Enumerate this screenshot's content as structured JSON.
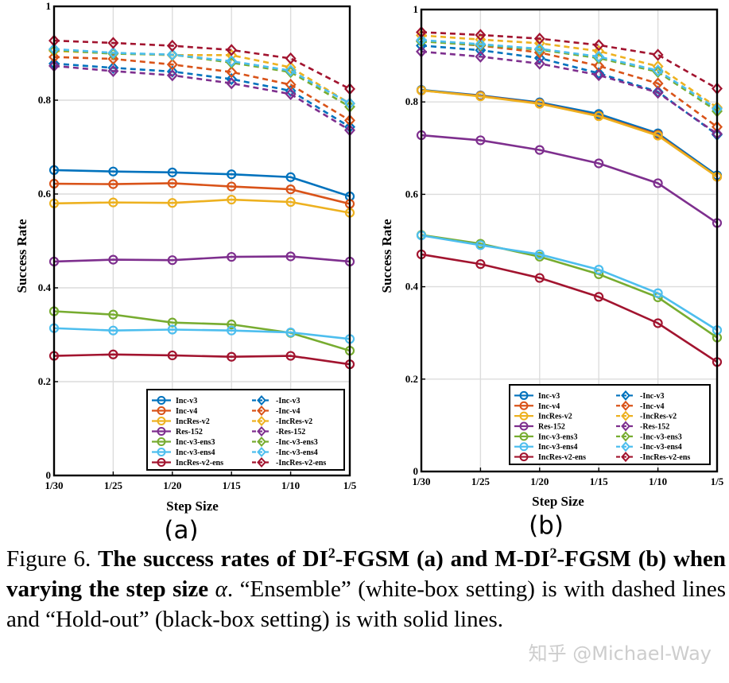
{
  "chart_data": [
    {
      "type": "line",
      "panel_label": "(a)",
      "xlabel": "Step Size",
      "ylabel": "Success Rate",
      "categories": [
        "1/30",
        "1/25",
        "1/20",
        "1/15",
        "1/10",
        "1/5"
      ],
      "yticks": [
        "0",
        "0.2",
        "0.4",
        "0.6",
        "0.8",
        "1"
      ],
      "ylim": [
        0,
        1
      ],
      "grid": true,
      "legend_position": "bottom-right",
      "series": [
        {
          "name": "Inc-v3",
          "style": "solid",
          "marker": "circle",
          "color": "#0072BD",
          "values": [
            0.651,
            0.648,
            0.646,
            0.642,
            0.636,
            0.595
          ]
        },
        {
          "name": "Inc-v4",
          "style": "solid",
          "marker": "circle",
          "color": "#D95319",
          "values": [
            0.622,
            0.621,
            0.623,
            0.616,
            0.61,
            0.579
          ]
        },
        {
          "name": "IncRes-v2",
          "style": "solid",
          "marker": "circle",
          "color": "#EDB120",
          "values": [
            0.58,
            0.582,
            0.581,
            0.588,
            0.583,
            0.56
          ]
        },
        {
          "name": "Res-152",
          "style": "solid",
          "marker": "circle",
          "color": "#7E2F8E",
          "values": [
            0.456,
            0.46,
            0.459,
            0.466,
            0.467,
            0.456
          ]
        },
        {
          "name": "Inc-v3-ens3",
          "style": "solid",
          "marker": "circle",
          "color": "#77AC30",
          "values": [
            0.35,
            0.343,
            0.326,
            0.322,
            0.304,
            0.266
          ]
        },
        {
          "name": "Inc-v3-ens4",
          "style": "solid",
          "marker": "circle",
          "color": "#4DBEEE",
          "values": [
            0.314,
            0.309,
            0.311,
            0.309,
            0.305,
            0.291
          ]
        },
        {
          "name": "IncRes-v2-ens",
          "style": "solid",
          "marker": "circle",
          "color": "#A2142F",
          "values": [
            0.255,
            0.258,
            0.256,
            0.253,
            0.255,
            0.237
          ]
        },
        {
          "name": "-Inc-v3",
          "style": "dashed",
          "marker": "diamond",
          "color": "#0072BD",
          "values": [
            0.878,
            0.869,
            0.861,
            0.845,
            0.82,
            0.743
          ]
        },
        {
          "name": "-Inc-v4",
          "style": "dashed",
          "marker": "diamond",
          "color": "#D95319",
          "values": [
            0.892,
            0.888,
            0.876,
            0.86,
            0.833,
            0.757
          ]
        },
        {
          "name": "-IncRes-v2",
          "style": "dashed",
          "marker": "diamond",
          "color": "#EDB120",
          "values": [
            0.905,
            0.9,
            0.896,
            0.896,
            0.87,
            0.793
          ]
        },
        {
          "name": "-Res-152",
          "style": "dashed",
          "marker": "diamond",
          "color": "#7E2F8E",
          "values": [
            0.873,
            0.862,
            0.853,
            0.836,
            0.813,
            0.736
          ]
        },
        {
          "name": "-Inc-v3-ens3",
          "style": "dashed",
          "marker": "diamond",
          "color": "#77AC30",
          "values": [
            0.907,
            0.899,
            0.897,
            0.88,
            0.86,
            0.786
          ]
        },
        {
          "name": "-Inc-v3-ens4",
          "style": "dashed",
          "marker": "diamond",
          "color": "#4DBEEE",
          "values": [
            0.909,
            0.901,
            0.897,
            0.883,
            0.863,
            0.793
          ]
        },
        {
          "name": "-IncRes-v2-ens",
          "style": "dashed",
          "marker": "diamond",
          "color": "#A2142F",
          "values": [
            0.927,
            0.922,
            0.916,
            0.907,
            0.889,
            0.824
          ]
        }
      ]
    },
    {
      "type": "line",
      "panel_label": "(b)",
      "xlabel": "Step Size",
      "ylabel": "Success Rate",
      "categories": [
        "1/30",
        "1/25",
        "1/20",
        "1/15",
        "1/10",
        "1/5"
      ],
      "yticks": [
        "0",
        "0.2",
        "0.4",
        "0.6",
        "0.8",
        "1"
      ],
      "ylim": [
        0,
        1
      ],
      "grid": true,
      "legend_position": "bottom-right",
      "series": [
        {
          "name": "Inc-v3",
          "style": "solid",
          "marker": "circle",
          "color": "#0072BD",
          "values": [
            0.826,
            0.814,
            0.799,
            0.774,
            0.732,
            0.641
          ]
        },
        {
          "name": "Inc-v4",
          "style": "solid",
          "marker": "circle",
          "color": "#D95319",
          "values": [
            0.825,
            0.813,
            0.797,
            0.77,
            0.729,
            0.638
          ]
        },
        {
          "name": "IncRes-v2",
          "style": "solid",
          "marker": "circle",
          "color": "#EDB120",
          "values": [
            0.825,
            0.812,
            0.796,
            0.769,
            0.727,
            0.638
          ]
        },
        {
          "name": "Res-152",
          "style": "solid",
          "marker": "circle",
          "color": "#7E2F8E",
          "values": [
            0.728,
            0.717,
            0.696,
            0.667,
            0.624,
            0.538
          ]
        },
        {
          "name": "Inc-v3-ens3",
          "style": "solid",
          "marker": "circle",
          "color": "#77AC30",
          "values": [
            0.512,
            0.493,
            0.465,
            0.427,
            0.377,
            0.29
          ]
        },
        {
          "name": "Inc-v3-ens4",
          "style": "solid",
          "marker": "circle",
          "color": "#4DBEEE",
          "values": [
            0.511,
            0.49,
            0.47,
            0.437,
            0.386,
            0.306
          ]
        },
        {
          "name": "IncRes-v2-ens",
          "style": "solid",
          "marker": "circle",
          "color": "#A2142F",
          "values": [
            0.47,
            0.449,
            0.419,
            0.378,
            0.321,
            0.237
          ]
        },
        {
          "name": "-Inc-v3",
          "style": "dashed",
          "marker": "diamond",
          "color": "#0072BD",
          "values": [
            0.922,
            0.912,
            0.895,
            0.862,
            0.822,
            0.729
          ]
        },
        {
          "name": "-Inc-v4",
          "style": "dashed",
          "marker": "diamond",
          "color": "#D95319",
          "values": [
            0.932,
            0.922,
            0.907,
            0.878,
            0.84,
            0.746
          ]
        },
        {
          "name": "-IncRes-v2",
          "style": "dashed",
          "marker": "diamond",
          "color": "#EDB120",
          "values": [
            0.944,
            0.935,
            0.927,
            0.91,
            0.877,
            0.788
          ]
        },
        {
          "name": "-Res-152",
          "style": "dashed",
          "marker": "diamond",
          "color": "#7E2F8E",
          "values": [
            0.909,
            0.898,
            0.883,
            0.858,
            0.82,
            0.731
          ]
        },
        {
          "name": "-Inc-v3-ens3",
          "style": "dashed",
          "marker": "diamond",
          "color": "#77AC30",
          "values": [
            0.931,
            0.923,
            0.913,
            0.895,
            0.865,
            0.78
          ]
        },
        {
          "name": "-Inc-v3-ens4",
          "style": "dashed",
          "marker": "diamond",
          "color": "#4DBEEE",
          "values": [
            0.934,
            0.925,
            0.915,
            0.898,
            0.868,
            0.785
          ]
        },
        {
          "name": "-IncRes-v2-ens",
          "style": "dashed",
          "marker": "diamond",
          "color": "#A2142F",
          "values": [
            0.951,
            0.945,
            0.937,
            0.923,
            0.902,
            0.829
          ]
        }
      ]
    }
  ],
  "caption": {
    "prefix": "Figure 6. ",
    "bold_1": "The success rates of DI",
    "sup_1": "2",
    "bold_2": "-FGSM (a) and M-DI",
    "sup_2": "2",
    "bold_3": "-FGSM (b) when varying the step size ",
    "alpha": "α",
    "rest": ". “Ensemble” (white-box setting) is with dashed lines and “Hold-out” (black-box setting) is with solid lines."
  },
  "watermark": "知乎 @Michael-Way"
}
